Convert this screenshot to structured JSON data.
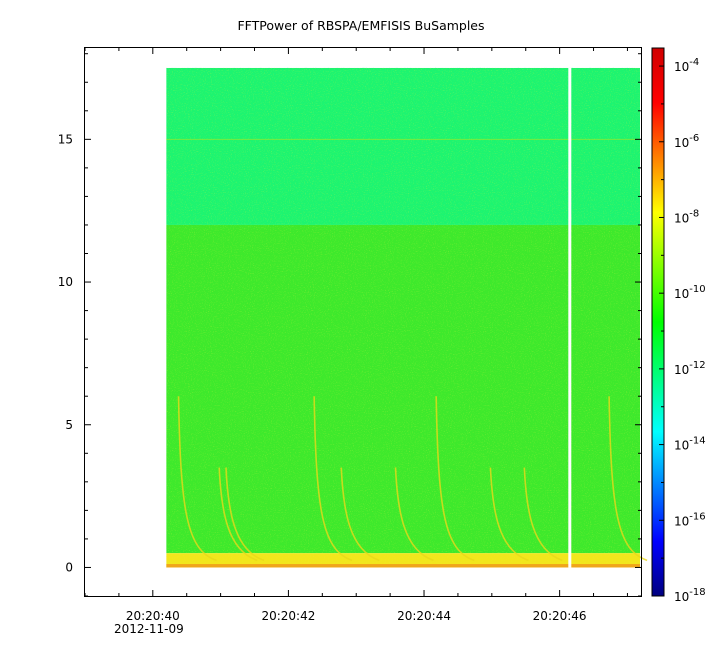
{
  "chart_data": {
    "type": "heatmap",
    "title": "FFTPower of RBSPA/EMFISIS  BuSamples",
    "xlabel": "",
    "ylabel": "",
    "x_date_label": "2012-11-09",
    "x_tick_labels": [
      "20:20:40",
      "20:20:42",
      "20:20:44",
      "20:20:46"
    ],
    "x_range": [
      "20:20:39",
      "20:20:47.2"
    ],
    "y_range": [
      -1,
      18.2
    ],
    "y_ticks": [
      0,
      5,
      10,
      15
    ],
    "data_extent": {
      "time_start": "20:20:40.2",
      "time_end": "20:20:47.2",
      "freq_min": 0,
      "freq_max": 17.5,
      "gap_time": "20:20:46.15"
    },
    "colorbar": {
      "scale": "log",
      "range": [
        1e-18,
        0.0003
      ],
      "tick_labels": [
        {
          "base": "10",
          "exp": "-18",
          "value": 1e-18
        },
        {
          "base": "10",
          "exp": "-16",
          "value": 1e-16
        },
        {
          "base": "10",
          "exp": "-14",
          "value": 1e-14
        },
        {
          "base": "10",
          "exp": "-12",
          "value": 1e-12
        },
        {
          "base": "10",
          "exp": "-10",
          "value": 1e-10
        },
        {
          "base": "10",
          "exp": "-8",
          "value": 1e-08
        },
        {
          "base": "10",
          "exp": "-6",
          "value": 1e-06
        },
        {
          "base": "10",
          "exp": "-4",
          "value": 0.0001
        }
      ],
      "colors": [
        "#00007f",
        "#0000ff",
        "#0080ff",
        "#00ffff",
        "#00ff80",
        "#00ff00",
        "#80ff00",
        "#ffff00",
        "#ff8000",
        "#ff0000",
        "#d00000"
      ]
    },
    "bands": [
      {
        "freq_range": [
          12,
          17.5
        ],
        "level": "1e-11",
        "color": "#1ef46f"
      },
      {
        "freq_range": [
          0.5,
          12
        ],
        "level": "1e-10",
        "color": "#3ee92c"
      },
      {
        "freq_range": [
          0,
          0.5
        ],
        "level": "1e-8",
        "color": "#f2e61c"
      }
    ],
    "grid": false
  }
}
